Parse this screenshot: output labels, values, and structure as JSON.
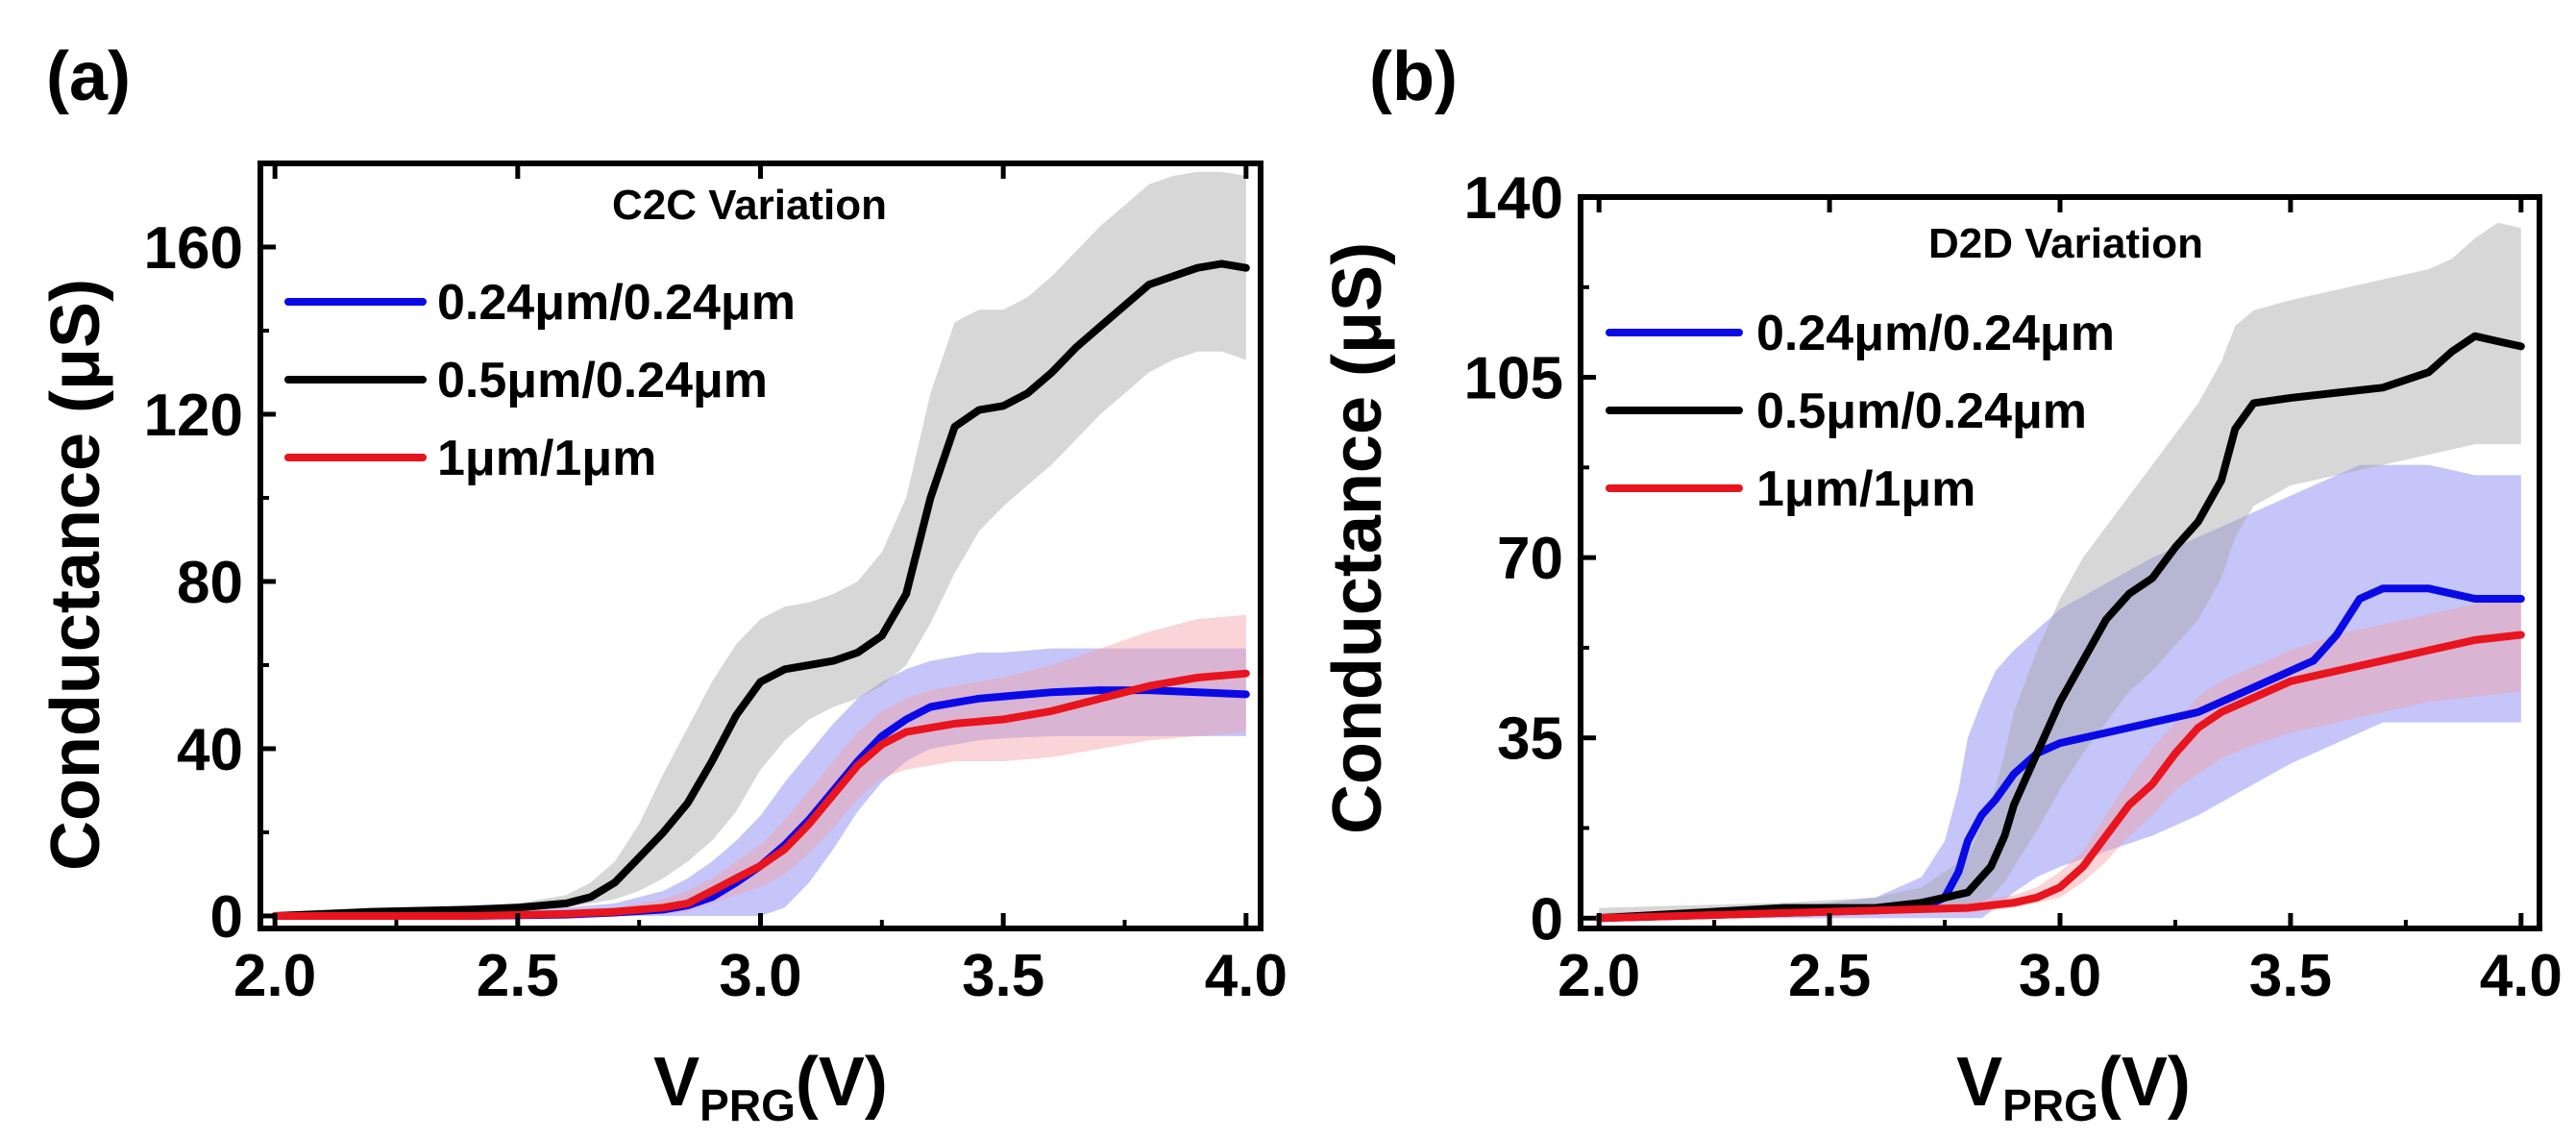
{
  "figure": {
    "panels": [
      "(a)",
      "(b)"
    ]
  },
  "chart_data": [
    {
      "type": "line",
      "panel_label": "(a)",
      "title": "C2C Variation",
      "xlabel": "V",
      "xlabel_sub": "PRG",
      "xlabel_unit": "(V)",
      "ylabel": "Conductance (μS)",
      "xlim": [
        1.97,
        4.03
      ],
      "ylim": [
        -3,
        180
      ],
      "xticks": [
        2.0,
        2.5,
        3.0,
        3.5,
        4.0
      ],
      "xtick_labels": [
        "2.0",
        "2.5",
        "3.0",
        "3.5",
        "4.0"
      ],
      "yticks": [
        0,
        40,
        80,
        120,
        160
      ],
      "ytick_labels": [
        "0",
        "40",
        "80",
        "120",
        "160"
      ],
      "legend_position": "top-left",
      "series": [
        {
          "name": "0.24μm/0.24μm",
          "color": "#0a0ae6",
          "band_color": "#7f7ff2",
          "x": [
            2.0,
            2.2,
            2.4,
            2.6,
            2.7,
            2.8,
            2.85,
            2.9,
            2.95,
            3.0,
            3.05,
            3.1,
            3.15,
            3.2,
            3.25,
            3.3,
            3.35,
            3.4,
            3.45,
            3.5,
            3.6,
            3.7,
            3.8,
            3.9,
            4.0
          ],
          "values": [
            0,
            0,
            0,
            0.3,
            0.8,
            1.5,
            2.5,
            4.5,
            8,
            12,
            17,
            23,
            30,
            37,
            43,
            47,
            50,
            51,
            52,
            52.5,
            53.5,
            54,
            54,
            53.5,
            53
          ],
          "lower": [
            0,
            0,
            0,
            0,
            0,
            0,
            0,
            0,
            0,
            0,
            2,
            8,
            16,
            25,
            32,
            37,
            40,
            41,
            42,
            42.5,
            43,
            43,
            43,
            43,
            43
          ],
          "upper": [
            0.5,
            0.5,
            0.8,
            2,
            3,
            6,
            9,
            13,
            18,
            24,
            32,
            39,
            46,
            52,
            56,
            59,
            61,
            62,
            63,
            63,
            64,
            64,
            64,
            64,
            64
          ]
        },
        {
          "name": "0.5μm/0.24μm",
          "color": "#000000",
          "band_color": "#a6a6a6",
          "x": [
            2.0,
            2.2,
            2.4,
            2.5,
            2.6,
            2.65,
            2.7,
            2.75,
            2.8,
            2.85,
            2.9,
            2.95,
            3.0,
            3.05,
            3.1,
            3.15,
            3.2,
            3.25,
            3.3,
            3.35,
            3.4,
            3.45,
            3.5,
            3.55,
            3.6,
            3.65,
            3.7,
            3.75,
            3.8,
            3.85,
            3.9,
            3.95,
            4.0
          ],
          "values": [
            0,
            1,
            1.5,
            2,
            3,
            4.5,
            8,
            14,
            20,
            27,
            37,
            48,
            56,
            59,
            60,
            61,
            63,
            67,
            77,
            100,
            117,
            121,
            122,
            125,
            130,
            136,
            141,
            146,
            151,
            153,
            155,
            156,
            155
          ],
          "lower": [
            0,
            0.5,
            1,
            1.5,
            2,
            3,
            4,
            6,
            9,
            13,
            18,
            25,
            35,
            42,
            47,
            50,
            52,
            55,
            60,
            70,
            82,
            92,
            98,
            103,
            108,
            114,
            120,
            125,
            130,
            133,
            135,
            135,
            133
          ],
          "upper": [
            1,
            1.5,
            2.5,
            3,
            5,
            8,
            13,
            22,
            34,
            45,
            56,
            65,
            71,
            74,
            75,
            77,
            80,
            87,
            100,
            125,
            142,
            145,
            145,
            148,
            153,
            159,
            165,
            170,
            175,
            177,
            178,
            178,
            177
          ]
        },
        {
          "name": "1μm/1μm",
          "color": "#e8141e",
          "band_color": "#f4a0a4",
          "x": [
            2.0,
            2.2,
            2.4,
            2.6,
            2.7,
            2.8,
            2.85,
            2.9,
            2.95,
            3.0,
            3.05,
            3.1,
            3.15,
            3.2,
            3.25,
            3.3,
            3.35,
            3.4,
            3.5,
            3.6,
            3.7,
            3.8,
            3.9,
            4.0
          ],
          "values": [
            0,
            0,
            0,
            0.5,
            1,
            2,
            3,
            6,
            9,
            12,
            16,
            22,
            29,
            36,
            41,
            44,
            45,
            46,
            47,
            49,
            52,
            55,
            57,
            58
          ],
          "lower": [
            0,
            0,
            0,
            0,
            0,
            0.5,
            1,
            3,
            5,
            7,
            10,
            15,
            21,
            28,
            33,
            35,
            36,
            37,
            37,
            38,
            40,
            42,
            43,
            44
          ],
          "upper": [
            0.5,
            0.5,
            0.5,
            1,
            2,
            4,
            6,
            9,
            13,
            17,
            23,
            30,
            37,
            44,
            49,
            52,
            54,
            55,
            57,
            60,
            64,
            68,
            71,
            72
          ]
        }
      ]
    },
    {
      "type": "line",
      "panel_label": "(b)",
      "title": "D2D Variation",
      "xlabel": "V",
      "xlabel_sub": "PRG",
      "xlabel_unit": "(V)",
      "ylabel": "Conductance (μS)",
      "xlim": [
        1.96,
        4.04
      ],
      "ylim": [
        -2,
        140
      ],
      "xticks": [
        2.0,
        2.5,
        3.0,
        3.5,
        4.0
      ],
      "xtick_labels": [
        "2.0",
        "2.5",
        "3.0",
        "3.5",
        "4.0"
      ],
      "yticks": [
        0,
        35,
        70,
        105,
        140
      ],
      "ytick_labels": [
        "0",
        "35",
        "70",
        "105",
        "140"
      ],
      "legend_position": "top-left",
      "series": [
        {
          "name": "0.24μm/0.24μm",
          "color": "#0a0ae6",
          "band_color": "#7f7ff2",
          "x": [
            2.0,
            2.2,
            2.4,
            2.6,
            2.7,
            2.75,
            2.78,
            2.8,
            2.83,
            2.86,
            2.9,
            2.95,
            3.0,
            3.1,
            3.2,
            3.3,
            3.4,
            3.5,
            3.55,
            3.6,
            3.65,
            3.7,
            3.75,
            3.8,
            3.9,
            4.0
          ],
          "values": [
            0,
            0.5,
            1,
            1.5,
            2,
            4,
            9,
            15,
            20,
            23,
            28,
            32,
            34,
            36,
            38,
            40,
            44,
            48,
            50,
            55,
            62,
            64,
            64,
            64,
            62,
            62
          ],
          "lower": [
            0,
            0,
            0,
            0,
            0,
            0,
            0,
            0,
            0,
            2,
            5,
            8,
            10,
            13,
            16,
            20,
            25,
            30,
            32,
            34,
            36,
            38,
            38,
            38,
            38,
            38
          ],
          "upper": [
            1,
            1.5,
            2,
            4,
            8,
            15,
            25,
            35,
            42,
            48,
            52,
            56,
            60,
            65,
            70,
            74,
            78,
            82,
            84,
            86,
            88,
            88,
            88,
            88,
            86,
            86
          ]
        },
        {
          "name": "0.5μm/0.24μm",
          "color": "#000000",
          "band_color": "#a6a6a6",
          "x": [
            2.0,
            2.2,
            2.4,
            2.6,
            2.7,
            2.8,
            2.85,
            2.88,
            2.9,
            2.95,
            3.0,
            3.05,
            3.1,
            3.15,
            3.2,
            3.25,
            3.3,
            3.35,
            3.38,
            3.42,
            3.5,
            3.6,
            3.7,
            3.8,
            3.85,
            3.9,
            3.95,
            4.0
          ],
          "values": [
            0,
            1,
            2,
            2,
            3,
            5,
            10,
            16,
            22,
            32,
            42,
            50,
            58,
            63,
            66,
            72,
            77,
            85,
            95,
            100,
            101,
            102,
            103,
            106,
            110,
            113,
            112,
            111
          ],
          "lower": [
            0,
            0,
            0.5,
            1,
            1.5,
            2,
            4,
            7,
            10,
            17,
            25,
            32,
            38,
            44,
            48,
            53,
            58,
            66,
            74,
            80,
            84,
            86,
            88,
            90,
            91,
            92,
            92,
            92
          ],
          "upper": [
            2,
            2.5,
            3,
            4,
            6,
            12,
            22,
            32,
            40,
            52,
            62,
            70,
            76,
            82,
            88,
            94,
            100,
            108,
            115,
            118,
            120,
            122,
            124,
            126,
            128,
            132,
            135,
            134
          ]
        },
        {
          "name": "1μm/1μm",
          "color": "#e8141e",
          "band_color": "#f4a0a4",
          "x": [
            2.0,
            2.2,
            2.4,
            2.6,
            2.8,
            2.9,
            2.95,
            3.0,
            3.05,
            3.1,
            3.15,
            3.2,
            3.25,
            3.3,
            3.35,
            3.4,
            3.5,
            3.6,
            3.7,
            3.8,
            3.9,
            4.0
          ],
          "values": [
            0,
            0.5,
            1,
            1.5,
            2,
            3,
            4,
            6,
            10,
            16,
            22,
            26,
            32,
            37,
            40,
            42,
            46,
            48,
            50,
            52,
            54,
            55
          ],
          "lower": [
            0,
            0,
            0.5,
            1,
            1,
            2,
            3,
            4,
            7,
            11,
            16,
            20,
            25,
            28,
            31,
            33,
            36,
            38,
            40,
            42,
            43,
            44
          ],
          "upper": [
            1,
            1,
            1.5,
            2.5,
            3,
            4.5,
            6,
            9,
            13,
            20,
            27,
            33,
            38,
            43,
            46,
            48,
            52,
            55,
            57,
            59,
            61,
            62
          ]
        }
      ]
    }
  ]
}
